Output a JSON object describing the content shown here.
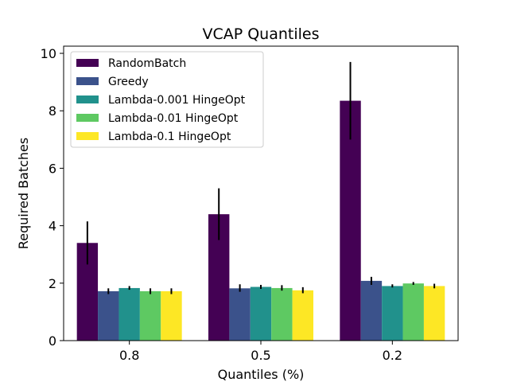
{
  "chart_data": {
    "type": "bar",
    "title": "VCAP Quantiles",
    "xlabel": "Quantiles (%)",
    "ylabel": "Required Batches",
    "categories": [
      "0.8",
      "0.5",
      "0.2"
    ],
    "ylim": [
      0,
      10.25
    ],
    "yticks": [
      0,
      2,
      4,
      6,
      8,
      10
    ],
    "legend_position": "top-left",
    "grid": false,
    "series": [
      {
        "name": "RandomBatch",
        "color": "#440154",
        "values": [
          3.4,
          4.4,
          8.35
        ],
        "err_low": [
          2.65,
          3.5,
          7.0
        ],
        "err_high": [
          4.15,
          5.3,
          9.7
        ]
      },
      {
        "name": "Greedy",
        "color": "#3b528b",
        "values": [
          1.72,
          1.82,
          2.08
        ],
        "err_low": [
          1.62,
          1.7,
          1.94
        ],
        "err_high": [
          1.82,
          1.96,
          2.22
        ]
      },
      {
        "name": "Lambda-0.001 HingeOpt",
        "color": "#21918c",
        "values": [
          1.83,
          1.87,
          1.9
        ],
        "err_low": [
          1.77,
          1.8,
          1.85
        ],
        "err_high": [
          1.9,
          1.94,
          1.96
        ]
      },
      {
        "name": "Lambda-0.01 HingeOpt",
        "color": "#5ec962",
        "values": [
          1.72,
          1.83,
          1.99
        ],
        "err_low": [
          1.62,
          1.74,
          1.94
        ],
        "err_high": [
          1.82,
          1.93,
          2.04
        ]
      },
      {
        "name": "Lambda-0.1 HingeOpt",
        "color": "#fde725",
        "values": [
          1.72,
          1.75,
          1.9
        ],
        "err_low": [
          1.62,
          1.65,
          1.82
        ],
        "err_high": [
          1.82,
          1.86,
          1.98
        ]
      }
    ]
  }
}
